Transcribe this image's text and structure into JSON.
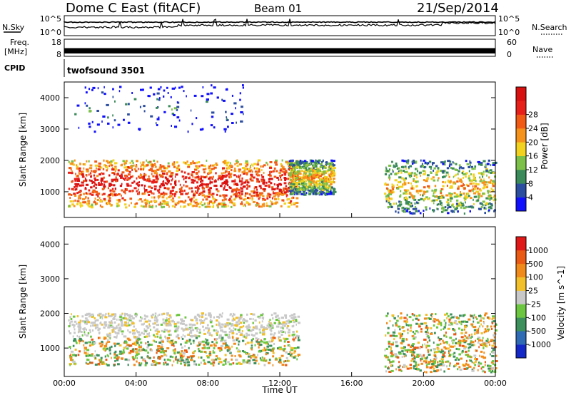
{
  "header": {
    "station": "Dome C East (fitACF)",
    "beam": "Beam 01",
    "date": "21/Sep/2014"
  },
  "status_panels": {
    "nsky_label": "N.Sky",
    "nsky_ticks": [
      "10^5",
      "10^0"
    ],
    "nsearch_label": "N.Search",
    "nsearch_ticks": [
      "10^5",
      "10^0"
    ],
    "freq_label": "Freq.",
    "freq_unit": "[MHz]",
    "freq_ticks": [
      "18",
      "8"
    ],
    "nave_label": "Nave",
    "nave_ticks": [
      "60",
      "0"
    ],
    "cpid_label": "CPID",
    "cpid_value": "twofsound 3501"
  },
  "chart_data": [
    {
      "type": "heatmap",
      "name": "power",
      "ylabel": "Slant Range [km]",
      "xlabel": "Time UT",
      "x_ticks": [
        "00:00",
        "04:00",
        "08:00",
        "12:00",
        "16:00",
        "20:00",
        "00:00"
      ],
      "x_range_hours": [
        0,
        24
      ],
      "y_ticks": [
        1000,
        2000,
        3000,
        4000
      ],
      "ylim": [
        180,
        4500
      ],
      "colorbar_label": "Power [dB]",
      "colorbar_ticks": [
        "4",
        "8",
        "12",
        "16",
        "20",
        "24",
        "28"
      ],
      "colorbar_colors": [
        "#1010ff",
        "#2c4ea0",
        "#3a8a5a",
        "#7cc04a",
        "#f2d21e",
        "#f5921c",
        "#f05a14",
        "#e8201a",
        "#d81010"
      ],
      "echo_regions": [
        {
          "t": [
            0.2,
            13.0
          ],
          "range": [
            500,
            2000
          ],
          "level": "high"
        },
        {
          "t": [
            12.5,
            15.0
          ],
          "range": [
            900,
            2000
          ],
          "level": "medium"
        },
        {
          "t": [
            17.8,
            24.0
          ],
          "range": [
            300,
            2000
          ],
          "level": "medium"
        },
        {
          "t": [
            0.5,
            10.0
          ],
          "range": [
            2900,
            4400
          ],
          "level": "low"
        }
      ]
    },
    {
      "type": "heatmap",
      "name": "velocity",
      "ylabel": "Slant Range [km]",
      "xlabel": "Time UT",
      "x_ticks": [
        "00:00",
        "04:00",
        "08:00",
        "12:00",
        "16:00",
        "20:00",
        "00:00"
      ],
      "x_range_hours": [
        0,
        24
      ],
      "y_ticks": [
        1000,
        2000,
        3000,
        4000
      ],
      "ylim": [
        180,
        4500
      ],
      "colorbar_label": "Velocity [m s^-1]",
      "colorbar_ticks": [
        "1000",
        "500",
        "100",
        "25",
        "-25",
        "-100",
        "-500",
        "-1000"
      ],
      "colorbar_colors": [
        "#1428c8",
        "#2f6ab4",
        "#3d8f5c",
        "#6cc640",
        "#c8c8c8",
        "#f2c02a",
        "#f08a1a",
        "#ea5a14",
        "#e01818"
      ],
      "echo_regions": [
        {
          "t": [
            0.2,
            13.0
          ],
          "range": [
            1300,
            2000
          ],
          "level": "near-zero"
        },
        {
          "t": [
            0.2,
            13.0
          ],
          "range": [
            500,
            1300
          ],
          "level": "mixed"
        },
        {
          "t": [
            17.8,
            24.0
          ],
          "range": [
            300,
            2000
          ],
          "level": "mixed"
        }
      ]
    }
  ]
}
